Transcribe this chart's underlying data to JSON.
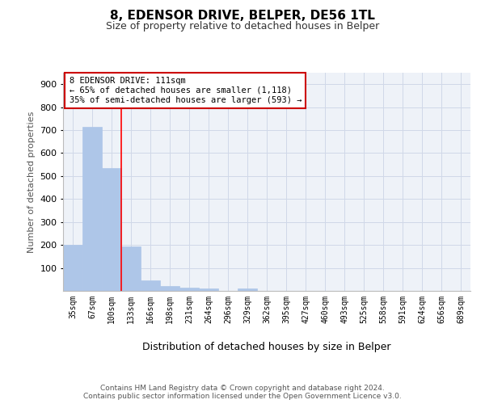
{
  "title1": "8, EDENSOR DRIVE, BELPER, DE56 1TL",
  "title2": "Size of property relative to detached houses in Belper",
  "xlabel": "Distribution of detached houses by size in Belper",
  "ylabel": "Number of detached properties",
  "categories": [
    "35sqm",
    "67sqm",
    "100sqm",
    "133sqm",
    "166sqm",
    "198sqm",
    "231sqm",
    "264sqm",
    "296sqm",
    "329sqm",
    "362sqm",
    "395sqm",
    "427sqm",
    "460sqm",
    "493sqm",
    "525sqm",
    "558sqm",
    "591sqm",
    "624sqm",
    "656sqm",
    "689sqm"
  ],
  "values": [
    200,
    715,
    535,
    192,
    45,
    20,
    15,
    12,
    0,
    10,
    0,
    0,
    0,
    0,
    0,
    0,
    0,
    0,
    0,
    0,
    0
  ],
  "bar_color": "#aec6e8",
  "bar_edgecolor": "#aec6e8",
  "red_line_x": 2.5,
  "annotation_text": "8 EDENSOR DRIVE: 111sqm\n← 65% of detached houses are smaller (1,118)\n35% of semi-detached houses are larger (593) →",
  "annotation_box_color": "#ffffff",
  "annotation_box_edgecolor": "#cc0000",
  "grid_color": "#d0d8e8",
  "background_color": "#eef2f8",
  "footer": "Contains HM Land Registry data © Crown copyright and database right 2024.\nContains public sector information licensed under the Open Government Licence v3.0.",
  "ylim": [
    0,
    950
  ],
  "yticks": [
    100,
    200,
    300,
    400,
    500,
    600,
    700,
    800,
    900
  ]
}
